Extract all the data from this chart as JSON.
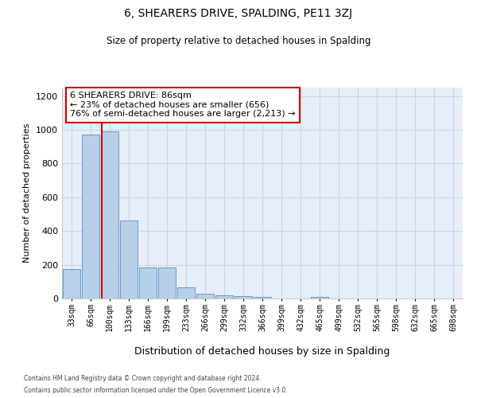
{
  "title": "6, SHEARERS DRIVE, SPALDING, PE11 3ZJ",
  "subtitle": "Size of property relative to detached houses in Spalding",
  "xlabel": "Distribution of detached houses by size in Spalding",
  "ylabel": "Number of detached properties",
  "footnote1": "Contains HM Land Registry data © Crown copyright and database right 2024.",
  "footnote2": "Contains public sector information licensed under the Open Government Licence v3.0.",
  "categories": [
    "33sqm",
    "66sqm",
    "100sqm",
    "133sqm",
    "166sqm",
    "199sqm",
    "233sqm",
    "266sqm",
    "299sqm",
    "332sqm",
    "366sqm",
    "399sqm",
    "432sqm",
    "465sqm",
    "499sqm",
    "532sqm",
    "565sqm",
    "598sqm",
    "632sqm",
    "665sqm",
    "698sqm"
  ],
  "values": [
    175,
    970,
    990,
    460,
    185,
    185,
    65,
    30,
    20,
    15,
    10,
    0,
    0,
    10,
    0,
    0,
    0,
    0,
    0,
    0,
    0
  ],
  "bar_color": "#b8cfe8",
  "bar_edge_color": "#6699cc",
  "grid_color": "#c8d4e8",
  "background_color": "#e8eef8",
  "vline_color": "#cc0000",
  "annotation_text": "6 SHEARERS DRIVE: 86sqm\n← 23% of detached houses are smaller (656)\n76% of semi-detached houses are larger (2,213) →",
  "annotation_box_color": "#ffffff",
  "annotation_box_edge": "#cc0000",
  "ylim": [
    0,
    1250
  ],
  "yticks": [
    0,
    200,
    400,
    600,
    800,
    1000,
    1200
  ]
}
